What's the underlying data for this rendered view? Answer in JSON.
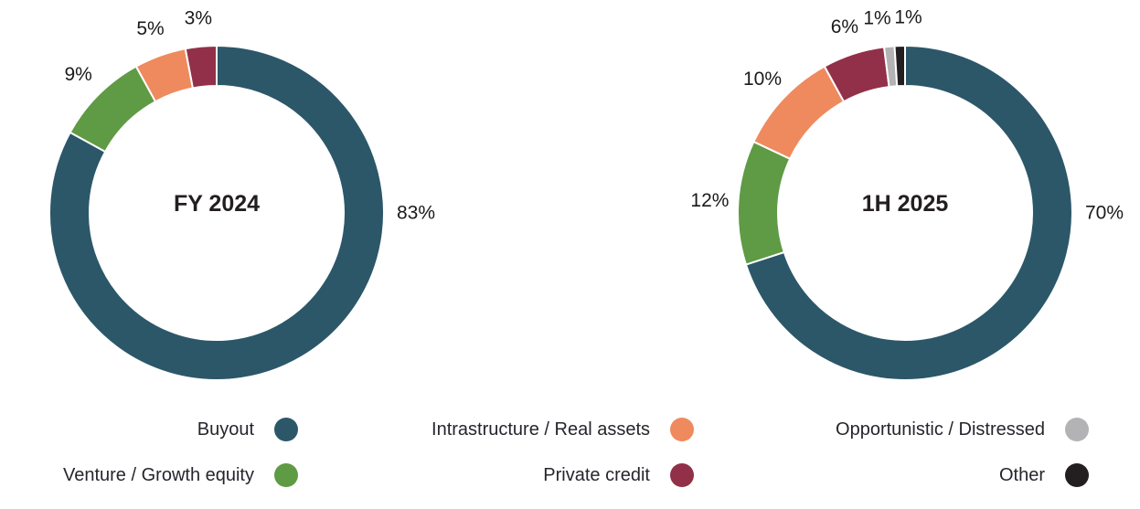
{
  "chart_data": [
    {
      "type": "donut",
      "title": "FY 2024",
      "categories": [
        "Buyout",
        "Venture / Growth equity",
        "Intrastructure / Real assets",
        "Private credit"
      ],
      "values": [
        83,
        9,
        5,
        3
      ],
      "labels": [
        "83%",
        "9%",
        "5%",
        "3%"
      ],
      "colors": [
        "#2b5769",
        "#5f9a45",
        "#ef8a5e",
        "#923049"
      ],
      "unit": "percent",
      "start_angle_deg": 0,
      "direction": "clockwise",
      "legend_position": "bottom"
    },
    {
      "type": "donut",
      "title": "1H 2025",
      "categories": [
        "Buyout",
        "Venture / Growth equity",
        "Intrastructure / Real assets",
        "Private credit",
        "Opportunistic / Distressed",
        "Other"
      ],
      "values": [
        70,
        12,
        10,
        6,
        1,
        1
      ],
      "labels": [
        "70%",
        "12%",
        "10%",
        "6%",
        "1%",
        "1%"
      ],
      "colors": [
        "#2b5769",
        "#5f9a45",
        "#ef8a5e",
        "#923049",
        "#b3b3b5",
        "#231f20"
      ],
      "unit": "percent",
      "start_angle_deg": 0,
      "direction": "clockwise",
      "legend_position": "bottom"
    }
  ],
  "legend": {
    "columns": [
      [
        {
          "label": "Buyout",
          "color": "#2b5769"
        },
        {
          "label": "Venture / Growth equity",
          "color": "#5f9a45"
        }
      ],
      [
        {
          "label": "Intrastructure / Real assets",
          "color": "#ef8a5e"
        },
        {
          "label": "Private credit",
          "color": "#923049"
        }
      ],
      [
        {
          "label": "Opportunistic / Distressed",
          "color": "#b3b3b5"
        },
        {
          "label": "Other",
          "color": "#231f20"
        }
      ]
    ]
  },
  "colors": {
    "text": "#231f20",
    "percent_label": "#1a1a1a",
    "segment_gap": "#ffffff",
    "background": "#ffffff"
  }
}
